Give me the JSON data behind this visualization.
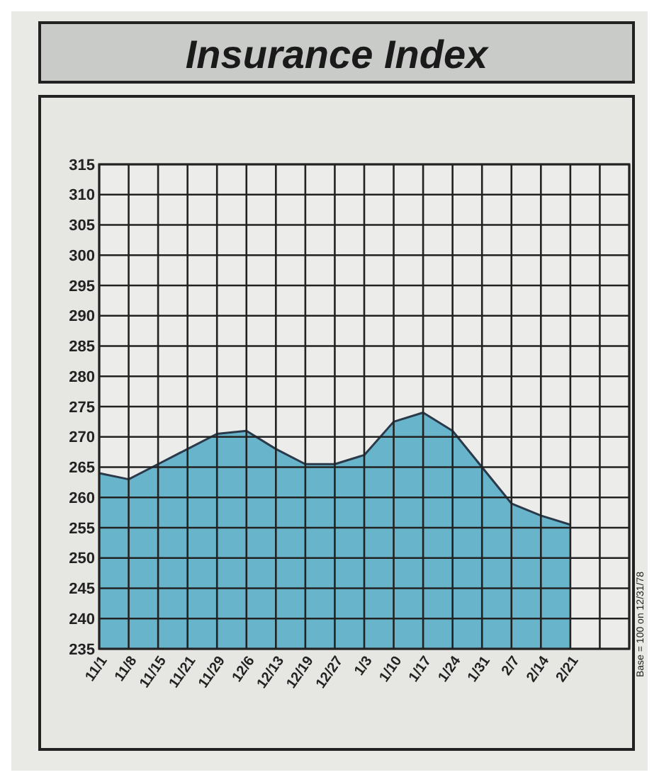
{
  "chart_data": {
    "type": "area",
    "title": "Insurance Index",
    "categories": [
      "11/1",
      "11/8",
      "11/15",
      "11/21",
      "11/29",
      "12/6",
      "12/13",
      "12/19",
      "12/27",
      "1/3",
      "1/10",
      "1/17",
      "1/24",
      "1/31",
      "2/7",
      "2/14",
      "2/21",
      null,
      null
    ],
    "values": [
      264,
      263,
      265.5,
      268,
      270.5,
      271,
      268,
      265.5,
      265.5,
      267,
      272.5,
      274,
      271,
      265,
      259,
      257,
      255.5,
      null,
      null
    ],
    "color": "#5aaec6",
    "ylim": [
      235,
      315
    ],
    "yticks": [
      235,
      240,
      245,
      250,
      255,
      260,
      265,
      270,
      275,
      280,
      285,
      290,
      295,
      300,
      305,
      310,
      315
    ],
    "grid": true,
    "annotations": [
      "Base = 100 on 12/31/78"
    ]
  }
}
